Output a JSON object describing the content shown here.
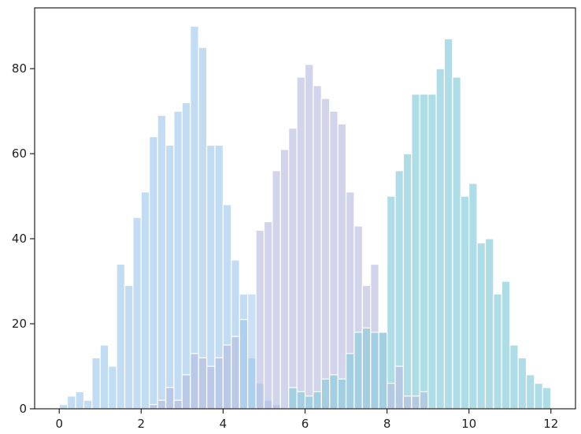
{
  "chart_data": {
    "type": "bar",
    "title": "",
    "xlabel": "",
    "ylabel": "",
    "xlim": [
      -0.6,
      12.6
    ],
    "ylim": [
      0,
      90
    ],
    "bin_start": 0.0,
    "bin_width": 0.2,
    "x_ticks": [
      0,
      2,
      4,
      6,
      8,
      10,
      12
    ],
    "y_ticks": [
      0,
      20,
      40,
      60,
      80
    ],
    "grid": false,
    "legend": "none",
    "series": [
      {
        "color": "#9dc6ee",
        "values": [
          1,
          3,
          4,
          2,
          12,
          15,
          10,
          34,
          29,
          45,
          51,
          64,
          69,
          62,
          70,
          72,
          90,
          85,
          62,
          62,
          48,
          35,
          27,
          12,
          6,
          2,
          1,
          0,
          0,
          0,
          0,
          0,
          0,
          0,
          0,
          0,
          0,
          0,
          0,
          0,
          0,
          0,
          0,
          0,
          0,
          0,
          0,
          0,
          0,
          0,
          0,
          0,
          0,
          0,
          0,
          0,
          0,
          0,
          0,
          0
        ]
      },
      {
        "color": "#b7b9df",
        "values": [
          0,
          0,
          0,
          0,
          0,
          0,
          0,
          0,
          0,
          0,
          0,
          0,
          0,
          0,
          0,
          0,
          0,
          0,
          0,
          0,
          0,
          0,
          0,
          0,
          42,
          44,
          56,
          61,
          66,
          78,
          81,
          76,
          73,
          70,
          67,
          51,
          43,
          29,
          34,
          18,
          0,
          0,
          0,
          0,
          0,
          0,
          0,
          0,
          0,
          0,
          0,
          0,
          0,
          0,
          0,
          0,
          0,
          0,
          0,
          0
        ]
      },
      {
        "color": "#7ec8d8",
        "values": [
          0,
          0,
          0,
          0,
          0,
          0,
          0,
          0,
          0,
          0,
          0,
          0,
          0,
          0,
          0,
          0,
          0,
          0,
          0,
          0,
          0,
          0,
          0,
          0,
          0,
          0,
          0,
          0,
          0,
          0,
          0,
          0,
          0,
          0,
          0,
          0,
          0,
          0,
          0,
          0,
          50,
          56,
          60,
          74,
          74,
          74,
          80,
          87,
          78,
          50,
          53,
          39,
          40,
          27,
          30,
          15,
          12,
          8,
          6,
          5
        ]
      }
    ],
    "overlaps": [
      {
        "series": 0,
        "bin": 22,
        "value": 21
      },
      {
        "series": 0,
        "bin": 23,
        "value": 27
      },
      {
        "series": 1,
        "bin": 11,
        "value": 1
      },
      {
        "series": 1,
        "bin": 12,
        "value": 2
      },
      {
        "series": 1,
        "bin": 13,
        "value": 5
      },
      {
        "series": 1,
        "bin": 14,
        "value": 2
      },
      {
        "series": 1,
        "bin": 15,
        "value": 8
      },
      {
        "series": 1,
        "bin": 16,
        "value": 13
      },
      {
        "series": 1,
        "bin": 17,
        "value": 12
      },
      {
        "series": 1,
        "bin": 18,
        "value": 10
      },
      {
        "series": 1,
        "bin": 19,
        "value": 12
      },
      {
        "series": 1,
        "bin": 20,
        "value": 15
      },
      {
        "series": 1,
        "bin": 21,
        "value": 17
      },
      {
        "series": 1,
        "bin": 40,
        "value": 6
      },
      {
        "series": 1,
        "bin": 41,
        "value": 10
      },
      {
        "series": 1,
        "bin": 42,
        "value": 3
      },
      {
        "series": 1,
        "bin": 43,
        "value": 3
      },
      {
        "series": 1,
        "bin": 44,
        "value": 4
      },
      {
        "series": 2,
        "bin": 28,
        "value": 5
      },
      {
        "series": 2,
        "bin": 29,
        "value": 4
      },
      {
        "series": 2,
        "bin": 30,
        "value": 3
      },
      {
        "series": 2,
        "bin": 31,
        "value": 4
      },
      {
        "series": 2,
        "bin": 32,
        "value": 7
      },
      {
        "series": 2,
        "bin": 33,
        "value": 8
      },
      {
        "series": 2,
        "bin": 34,
        "value": 7
      },
      {
        "series": 2,
        "bin": 35,
        "value": 13
      },
      {
        "series": 2,
        "bin": 36,
        "value": 18
      },
      {
        "series": 2,
        "bin": 37,
        "value": 19
      },
      {
        "series": 2,
        "bin": 38,
        "value": 18
      },
      {
        "series": 2,
        "bin": 39,
        "value": 18
      }
    ]
  }
}
